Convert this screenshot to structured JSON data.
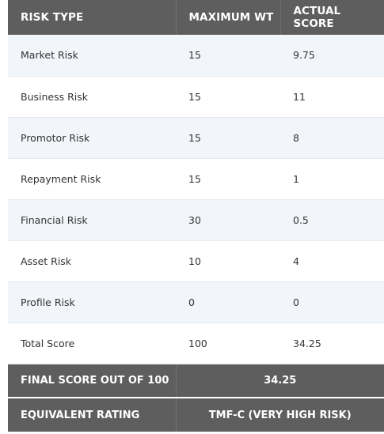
{
  "header": {
    "col1": "RISK TYPE",
    "col2": "MAXIMUM WT",
    "col3": "ACTUAL SCORE"
  },
  "rows": [
    {
      "type": "Market Risk",
      "max": "15",
      "actual": "9.75"
    },
    {
      "type": "Business Risk",
      "max": "15",
      "actual": "11"
    },
    {
      "type": "Promotor Risk",
      "max": "15",
      "actual": "8"
    },
    {
      "type": "Repayment Risk",
      "max": "15",
      "actual": "1"
    },
    {
      "type": "Financial Risk",
      "max": "30",
      "actual": "0.5"
    },
    {
      "type": "Asset Risk",
      "max": "10",
      "actual": "4"
    },
    {
      "type": "Profile Risk",
      "max": "0",
      "actual": "0"
    },
    {
      "type": "Total Score",
      "max": "100",
      "actual": "34.25"
    }
  ],
  "final_score": {
    "label": "FINAL SCORE OUT OF 100",
    "value": "34.25"
  },
  "equivalent_rating": {
    "label": "EQUIVALENT RATING",
    "value": "TMF-C (VERY HIGH RISK)"
  }
}
